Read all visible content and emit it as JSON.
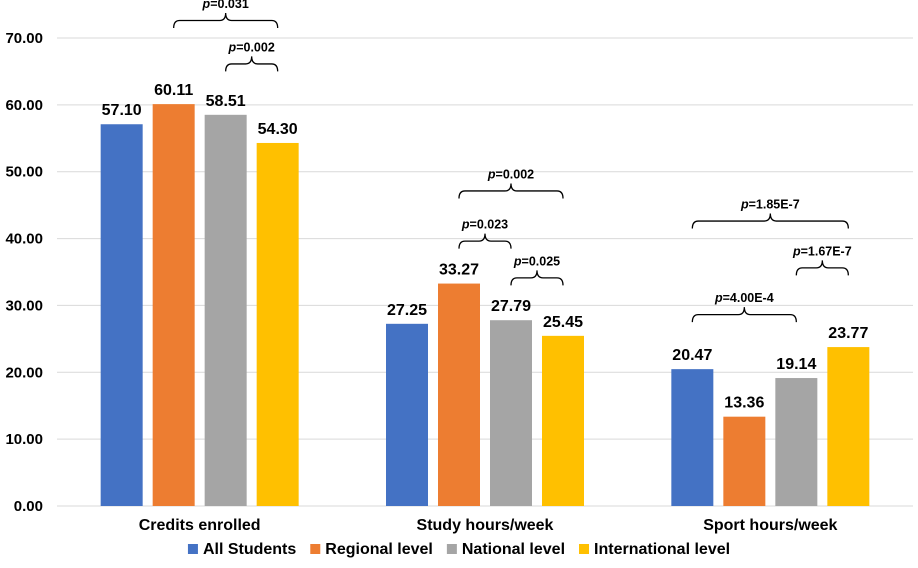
{
  "chart_data": {
    "type": "bar",
    "categories": [
      "Credits enrolled",
      "Study hours/week",
      "Sport hours/week"
    ],
    "series": [
      {
        "name": "All Students",
        "color": "#4472c4",
        "values": [
          57.1,
          27.25,
          20.47
        ],
        "labels": [
          "57.10",
          "27.25",
          "20.47"
        ]
      },
      {
        "name": "Regional level",
        "color": "#ed7d31",
        "values": [
          60.11,
          33.27,
          13.36
        ],
        "labels": [
          "60.11",
          "33.27",
          "13.36"
        ]
      },
      {
        "name": "National level",
        "color": "#a5a5a5",
        "values": [
          58.51,
          27.79,
          19.14
        ],
        "labels": [
          "58.51",
          "27.79",
          "19.14"
        ]
      },
      {
        "name": "International level",
        "color": "#ffc000",
        "values": [
          54.3,
          25.45,
          23.77
        ],
        "labels": [
          "54.30",
          "25.45",
          "23.77"
        ]
      }
    ],
    "ylim": [
      0,
      70
    ],
    "yticks": [
      "0.00",
      "10.00",
      "20.00",
      "30.00",
      "40.00",
      "50.00",
      "60.00",
      "70.00"
    ],
    "ytick_values": [
      0,
      10,
      20,
      30,
      40,
      50,
      60,
      70
    ],
    "legend_position": "bottom",
    "annotations": [
      {
        "category": 0,
        "from_series": 1,
        "to_series": 3,
        "level_value": 71.5,
        "p_prefix": "p",
        "p_rest": "=0.031"
      },
      {
        "category": 0,
        "from_series": 2,
        "to_series": 3,
        "level_value": 65.0,
        "p_prefix": "p",
        "p_rest": "=0.002"
      },
      {
        "category": 1,
        "from_series": 1,
        "to_series": 3,
        "level_value": 46.0,
        "p_prefix": "p",
        "p_rest": "=0.002"
      },
      {
        "category": 1,
        "from_series": 1,
        "to_series": 2,
        "level_value": 38.5,
        "p_prefix": "p",
        "p_rest": "=0.023"
      },
      {
        "category": 1,
        "from_series": 2,
        "to_series": 3,
        "level_value": 33.0,
        "p_prefix": "p",
        "p_rest": "=0.025"
      },
      {
        "category": 2,
        "from_series": 0,
        "to_series": 3,
        "level_value": 41.5,
        "p_prefix": "p",
        "p_rest": "=1.85E-7"
      },
      {
        "category": 2,
        "from_series": 2,
        "to_series": 3,
        "level_value": 34.5,
        "p_prefix": "p",
        "p_rest": "=1.67E-7"
      },
      {
        "category": 2,
        "from_series": 0,
        "to_series": 2,
        "level_value": 27.5,
        "p_prefix": "p",
        "p_rest": "=4.00E-4"
      }
    ]
  }
}
